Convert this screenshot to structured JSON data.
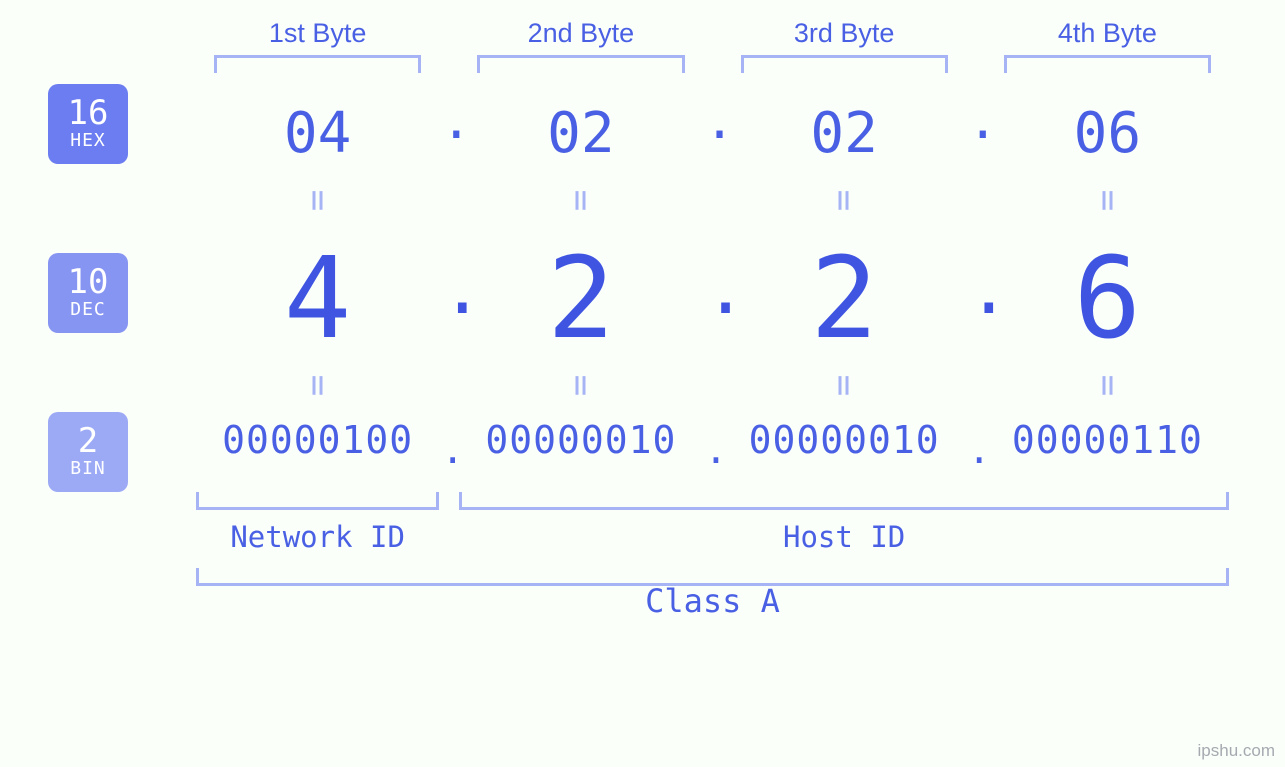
{
  "type": "infographic",
  "background_color": "#fafffa",
  "colors": {
    "primary": "#4a60e4",
    "primary_strong": "#3f55e2",
    "bracket": "#a6b3f4",
    "badge_hex": "#6b7df0",
    "badge_dec": "#8795f2",
    "badge_bin": "#9ca9f5",
    "credit": "#a6aab0"
  },
  "byte_headers": [
    "1st Byte",
    "2nd Byte",
    "3rd Byte",
    "4th Byte"
  ],
  "bases": {
    "hex": {
      "num": "16",
      "label": "HEX"
    },
    "dec": {
      "num": "10",
      "label": "DEC"
    },
    "bin": {
      "num": "2",
      "label": "BIN"
    }
  },
  "bytes": [
    {
      "hex": "04",
      "dec": "4",
      "bin": "00000100"
    },
    {
      "hex": "02",
      "dec": "2",
      "bin": "00000010"
    },
    {
      "hex": "02",
      "dec": "2",
      "bin": "00000010"
    },
    {
      "hex": "06",
      "dec": "6",
      "bin": "00000110"
    }
  ],
  "id_labels": {
    "network": "Network ID",
    "host": "Host ID"
  },
  "class_label": "Class A",
  "separator": ".",
  "equals": "=",
  "credit": "ipshu.com",
  "font_sizes_pt": {
    "byte_header": 20,
    "hex_value": 42,
    "dec_value": 84,
    "bin_value": 28,
    "badge_num": 26,
    "badge_label": 14,
    "id_label": 22,
    "class_label": 24
  }
}
